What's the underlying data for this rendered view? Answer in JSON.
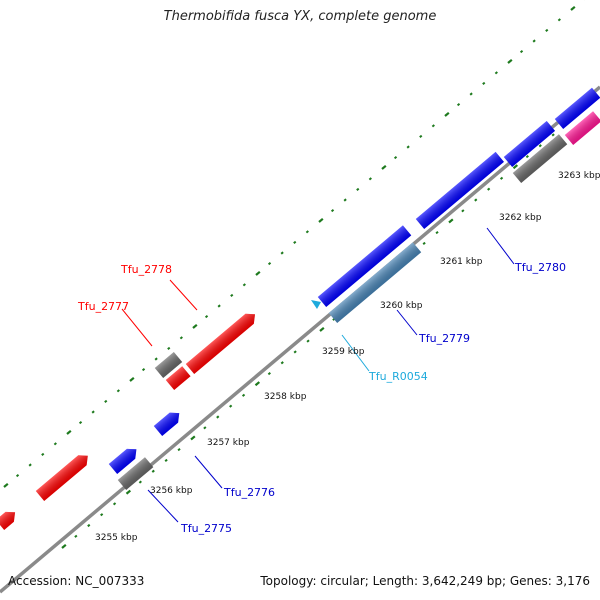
{
  "title": "Thermobifida fusca YX, complete genome",
  "accession_text": "Accession: NC_007333",
  "stats_text": "Topology: circular; Length: 3,642,249 bp; Genes: 3,176",
  "colors": {
    "red": "#ff0000",
    "blue": "#0000ff",
    "gray": "#666666",
    "steelblue": "#4682b4",
    "magenta": "#ff1493",
    "cyan": "#1eaadc",
    "backbone": "#888888",
    "tick": "#1e7a1e"
  },
  "kbp_labels": [
    "3255 kbp",
    "3256 kbp",
    "3257 kbp",
    "3258 kbp",
    "3259 kbp",
    "3260 kbp",
    "3261 kbp",
    "3262 kbp",
    "3263 kbp"
  ],
  "gene_labels": [
    {
      "id": "g2777",
      "text": "Tfu_2777",
      "color": "#ff0000"
    },
    {
      "id": "g2778",
      "text": "Tfu_2778",
      "color": "#ff0000"
    },
    {
      "id": "g2775",
      "text": "Tfu_2775",
      "color": "#0000cc"
    },
    {
      "id": "g2776",
      "text": "Tfu_2776",
      "color": "#0000cc"
    },
    {
      "id": "gR0054",
      "text": "Tfu_R0054",
      "color": "#1eaadc"
    },
    {
      "id": "g2779",
      "text": "Tfu_2779",
      "color": "#0000cc"
    },
    {
      "id": "g2780",
      "text": "Tfu_2780",
      "color": "#0000cc"
    }
  ]
}
